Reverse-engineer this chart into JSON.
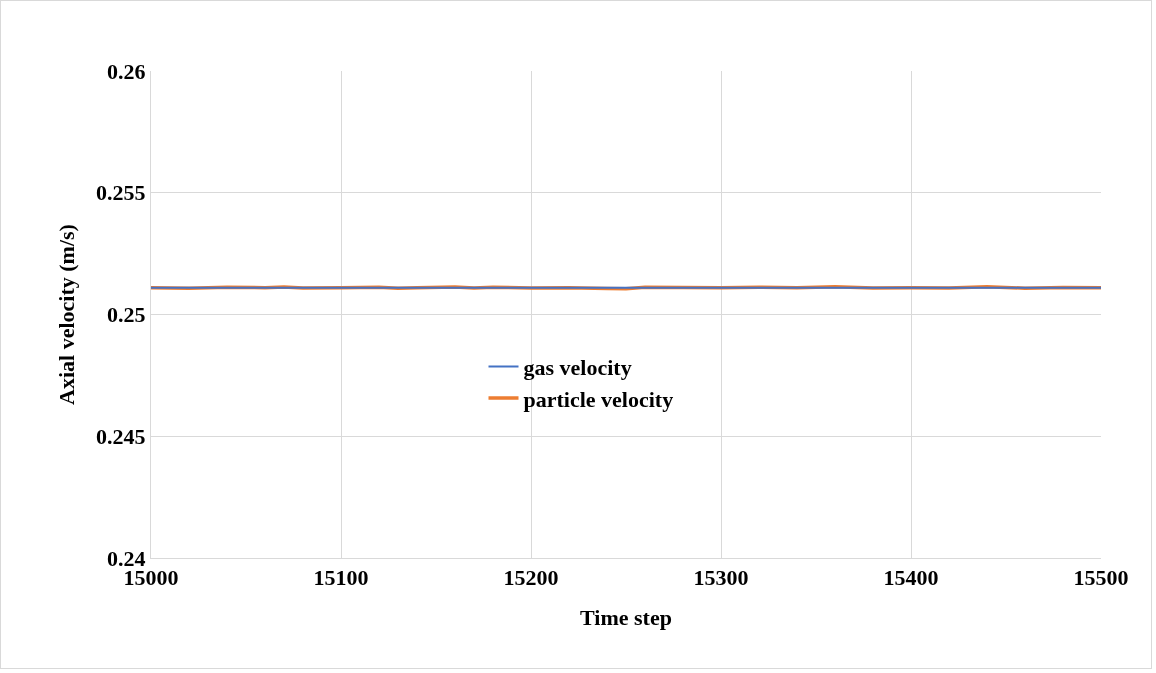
{
  "chart_data": {
    "type": "line",
    "xlabel": "Time step",
    "ylabel": "Axial velocity (m/s)",
    "xlim": [
      15000,
      15500
    ],
    "xticks": [
      15000,
      15100,
      15200,
      15300,
      15400,
      15500
    ],
    "ylim": [
      0.24,
      0.26
    ],
    "yticks": [
      0.24,
      0.245,
      0.25,
      0.255,
      0.26
    ],
    "grid": true,
    "legend": "center",
    "marker": "none",
    "line_style": "solid",
    "series": [
      {
        "name": "gas velocity",
        "color": "#4472c4",
        "x": [
          15000,
          15500
        ],
        "values": [
          0.2511,
          0.2511
        ]
      },
      {
        "name": "particle velocity",
        "color": "#ed7d31",
        "x": [
          15000,
          15020,
          15040,
          15060,
          15070,
          15080,
          15100,
          15120,
          15130,
          15140,
          15160,
          15170,
          15180,
          15200,
          15220,
          15240,
          15250,
          15260,
          15280,
          15300,
          15320,
          15340,
          15360,
          15380,
          15400,
          15420,
          15440,
          15460,
          15480,
          15500
        ],
        "values": [
          0.2511,
          0.25108,
          0.25112,
          0.2511,
          0.25113,
          0.25109,
          0.2511,
          0.25112,
          0.25108,
          0.2511,
          0.25113,
          0.25109,
          0.25112,
          0.25109,
          0.2511,
          0.25107,
          0.25106,
          0.25112,
          0.25111,
          0.2511,
          0.25112,
          0.2511,
          0.25114,
          0.25109,
          0.2511,
          0.25109,
          0.25114,
          0.25108,
          0.25111,
          0.2511
        ]
      }
    ]
  }
}
